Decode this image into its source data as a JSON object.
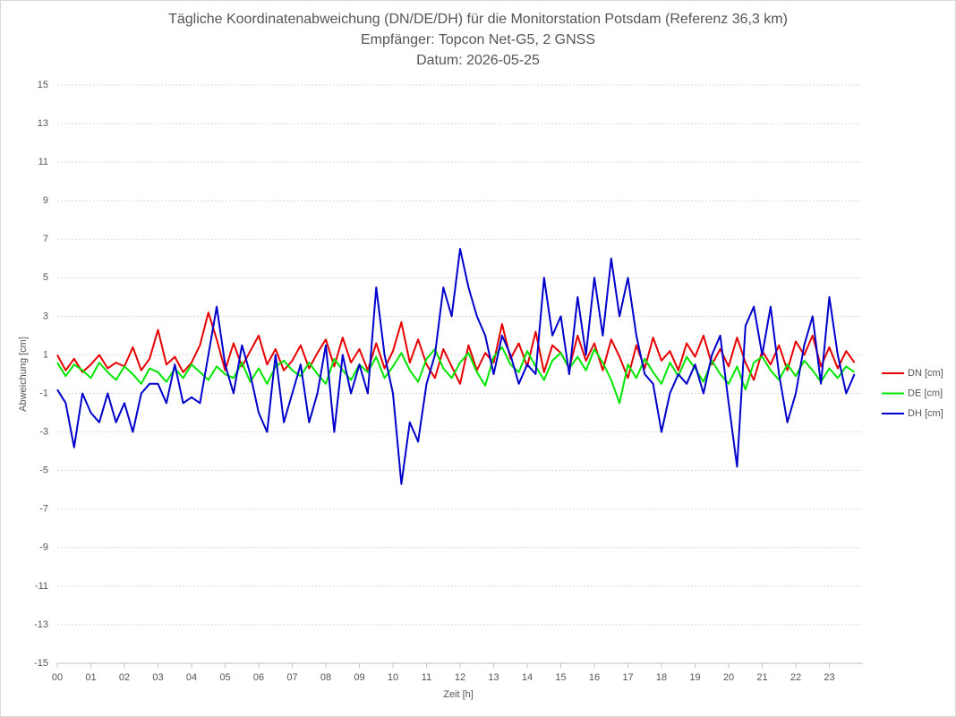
{
  "chart_data": {
    "type": "line",
    "title": "Tägliche Koordinatenabweichung (DN/DE/DH) für die Monitorstation Potsdam (Referenz 36,3 km)",
    "subtitle": "Empfänger: Topcon Net-G5, 2 GNSS",
    "date": "Datum: 2026-05-25",
    "x_label": "Zeit [h]",
    "y_label": "Abweichung [cm]",
    "x": [
      0,
      0.25,
      0.5,
      0.75,
      1,
      1.25,
      1.5,
      1.75,
      2,
      2.25,
      2.5,
      2.75,
      3,
      3.25,
      3.5,
      3.75,
      4,
      4.25,
      4.5,
      4.75,
      5,
      5.25,
      5.5,
      5.75,
      6,
      6.25,
      6.5,
      6.75,
      7,
      7.25,
      7.5,
      7.75,
      8,
      8.25,
      8.5,
      8.75,
      9,
      9.25,
      9.5,
      9.75,
      10,
      10.25,
      10.5,
      10.75,
      11,
      11.25,
      11.5,
      11.75,
      12,
      12.25,
      12.5,
      12.75,
      13,
      13.25,
      13.5,
      13.75,
      14,
      14.25,
      14.5,
      14.75,
      15,
      15.25,
      15.5,
      15.75,
      16,
      16.25,
      16.5,
      16.75,
      17,
      17.25,
      17.5,
      17.75,
      18,
      18.25,
      18.5,
      18.75,
      19,
      19.25,
      19.5,
      19.75,
      20,
      20.25,
      20.5,
      20.75,
      21,
      21.25,
      21.5,
      21.75,
      22,
      22.25,
      22.5,
      22.75,
      23,
      23.25,
      23.5,
      23.75
    ],
    "series": [
      {
        "name": "DN [cm]",
        "color": "#e60000",
        "values": [
          1,
          0.2,
          0.8,
          0.1,
          0.5,
          1,
          0.3,
          0.6,
          0.4,
          1.4,
          0.2,
          0.8,
          2.3,
          0.5,
          0.9,
          0.1,
          0.6,
          1.5,
          3.2,
          1.8,
          0.2,
          1.6,
          0.4,
          1.2,
          2,
          0.5,
          1.3,
          0.2,
          0.7,
          1.5,
          0.3,
          1.1,
          1.8,
          0.4,
          1.9,
          0.6,
          1.3,
          0.2,
          1.6,
          0.3,
          1.2,
          2.7,
          0.6,
          1.8,
          0.5,
          -0.2,
          1.3,
          0.4,
          -0.5,
          1.5,
          0.2,
          1.1,
          0.6,
          2.6,
          0.8,
          1.6,
          0.4,
          2.2,
          0.1,
          1.5,
          1.1,
          0.3,
          2,
          0.7,
          1.6,
          0.2,
          1.8,
          0.9,
          -0.2,
          1.5,
          0.3,
          1.9,
          0.7,
          1.2,
          0.2,
          1.6,
          0.9,
          2,
          0.5,
          1.3,
          0.4,
          1.9,
          0.6,
          -0.3,
          1.2,
          0.5,
          1.5,
          0.2,
          1.7,
          1,
          2,
          0.4,
          1.4,
          0.3,
          1.2,
          0.6
        ]
      },
      {
        "name": "DE [cm]",
        "color": "#00e600",
        "values": [
          0.6,
          -0.1,
          0.5,
          0.2,
          -0.2,
          0.6,
          0.1,
          -0.3,
          0.4,
          0,
          -0.5,
          0.3,
          0.1,
          -0.4,
          0.3,
          -0.2,
          0.5,
          0.1,
          -0.3,
          0.4,
          0,
          -0.2,
          0.6,
          -0.4,
          0.3,
          -0.5,
          0.4,
          0.7,
          0.2,
          -0.1,
          0.6,
          0,
          -0.5,
          0.8,
          0.2,
          -0.3,
          0.5,
          0.1,
          0.9,
          -0.2,
          0.4,
          1.1,
          0.2,
          -0.4,
          0.8,
          1.3,
          0.3,
          -0.2,
          0.6,
          1.1,
          0.1,
          -0.6,
          0.9,
          1.4,
          0.5,
          0.1,
          1.2,
          0.4,
          -0.3,
          0.7,
          1.1,
          0.3,
          0.9,
          0.2,
          1.3,
          0.6,
          -0.3,
          -1.5,
          0.5,
          -0.2,
          0.8,
          0.1,
          -0.5,
          0.6,
          -0.1,
          0.9,
          0.3,
          -0.4,
          0.7,
          0,
          -0.5,
          0.4,
          -0.8,
          0.6,
          0.9,
          0.2,
          -0.3,
          0.5,
          -0.1,
          0.7,
          0.2,
          -0.4,
          0.3,
          -0.2,
          0.4,
          0.1
        ]
      },
      {
        "name": "DH [cm]",
        "color": "#0000cc",
        "values": [
          -0.8,
          -1.5,
          -3.8,
          -1,
          -2,
          -2.5,
          -1,
          -2.5,
          -1.5,
          -3,
          -1,
          -0.5,
          -0.5,
          -1.5,
          0.5,
          -1.5,
          -1.2,
          -1.5,
          1,
          3.5,
          0.5,
          -1,
          1.5,
          0,
          -2,
          -3,
          1,
          -2.5,
          -1,
          0.5,
          -2.5,
          -1,
          1.5,
          -3,
          1,
          -1,
          0.5,
          -1,
          4.5,
          1,
          -1,
          -5.7,
          -2.5,
          -3.5,
          -0.5,
          1,
          4.5,
          3,
          6.5,
          4.5,
          3,
          2,
          0,
          2,
          1,
          -0.5,
          0.5,
          0,
          5,
          2,
          3,
          0,
          4,
          1,
          5,
          2,
          6,
          3,
          5,
          2,
          0,
          -0.5,
          -3,
          -1,
          0,
          -0.5,
          0.5,
          -1,
          1,
          2,
          -1.5,
          -4.8,
          2.5,
          3.5,
          1,
          3.5,
          0,
          -2.5,
          -1,
          1.5,
          3,
          -0.5,
          4,
          1,
          -1,
          0
        ]
      }
    ],
    "xlim": [
      0,
      24
    ],
    "ylim": [
      -15,
      15
    ],
    "xticks": [
      {
        "value": 0,
        "label": "00"
      },
      {
        "value": 1,
        "label": "01"
      },
      {
        "value": 2,
        "label": "02"
      },
      {
        "value": 3,
        "label": "03"
      },
      {
        "value": 4,
        "label": "04"
      },
      {
        "value": 5,
        "label": "05"
      },
      {
        "value": 6,
        "label": "06"
      },
      {
        "value": 7,
        "label": "07"
      },
      {
        "value": 8,
        "label": "08"
      },
      {
        "value": 9,
        "label": "09"
      },
      10,
      11,
      12,
      13,
      14,
      15,
      16,
      17,
      18,
      19,
      20,
      21,
      22,
      23
    ],
    "yticks": [
      -15,
      -13,
      -11,
      -9,
      -7,
      -5,
      -3,
      -1,
      1,
      3,
      5,
      7,
      9,
      11,
      13,
      15
    ],
    "grid": true,
    "legend": "right"
  }
}
